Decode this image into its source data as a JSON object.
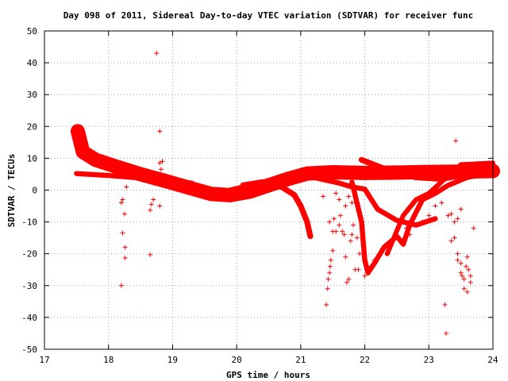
{
  "chart_data": {
    "type": "scatter",
    "title": "Day 098 of 2011, Sidereal Day-to-day VTEC variation (SDTVAR) for receiver func",
    "xlabel": "GPS time / hours",
    "ylabel": "SDTVAR / TECUs",
    "xlim": [
      17,
      24
    ],
    "ylim": [
      -50,
      50
    ],
    "x_ticks": [
      17,
      18,
      19,
      20,
      21,
      22,
      23,
      24
    ],
    "y_ticks": [
      -50,
      -40,
      -30,
      -20,
      -10,
      0,
      10,
      20,
      30,
      40,
      50
    ],
    "grid": true,
    "marker": "+",
    "point_color": "#ff0000",
    "band_color": "#ff0000",
    "bands": [
      {
        "points": [
          [
            17.5,
            5.2
          ],
          [
            18.0,
            4.6
          ],
          [
            18.5,
            3.8
          ],
          [
            19.0,
            2.8
          ],
          [
            19.3,
            2.2
          ]
        ],
        "width": 1.6
      },
      {
        "points": [
          [
            17.52,
            18.5
          ],
          [
            17.6,
            12.0
          ],
          [
            17.8,
            9.5
          ],
          [
            18.1,
            7.5
          ],
          [
            18.5,
            5.0
          ],
          [
            18.9,
            2.8
          ],
          [
            19.3,
            0.5
          ],
          [
            19.6,
            -1.2
          ],
          [
            19.9,
            -1.6
          ],
          [
            20.2,
            -0.5
          ],
          [
            20.5,
            1.5
          ],
          [
            20.8,
            3.5
          ],
          [
            21.1,
            5.2
          ],
          [
            21.5,
            5.6
          ],
          [
            22.0,
            5.4
          ],
          [
            22.5,
            5.5
          ],
          [
            23.0,
            5.7
          ],
          [
            23.5,
            5.8
          ],
          [
            24.0,
            6.0
          ]
        ],
        "width": 4.5
      },
      {
        "points": [
          [
            20.1,
            1.5
          ],
          [
            20.4,
            2.5
          ],
          [
            20.7,
            1.0
          ],
          [
            20.9,
            -1.5
          ],
          [
            21.0,
            -5.0
          ],
          [
            21.1,
            -10.0
          ],
          [
            21.15,
            -14.5
          ]
        ],
        "width": 1.8
      },
      {
        "points": [
          [
            19.8,
            -0.5
          ],
          [
            20.5,
            3.0
          ],
          [
            21.2,
            4.0
          ],
          [
            21.6,
            2.2
          ],
          [
            21.8,
            1.0
          ],
          [
            22.0,
            0.3
          ],
          [
            22.2,
            -6.0
          ],
          [
            22.5,
            -9.5
          ],
          [
            22.8,
            -11.0
          ],
          [
            23.1,
            -9.0
          ]
        ],
        "width": 1.6
      },
      {
        "points": [
          [
            21.8,
            2.5
          ],
          [
            21.95,
            -10.0
          ],
          [
            22.0,
            -22.0
          ],
          [
            22.05,
            -26.0
          ],
          [
            22.15,
            -23.0
          ],
          [
            22.3,
            -18.0
          ],
          [
            22.5,
            -14.5
          ],
          [
            22.6,
            -17.0
          ],
          [
            22.7,
            -11.0
          ],
          [
            22.9,
            -3.0
          ],
          [
            23.1,
            -1.0
          ],
          [
            23.3,
            1.5
          ],
          [
            23.6,
            4.0
          ],
          [
            24.0,
            5.5
          ]
        ],
        "width": 1.6
      },
      {
        "points": [
          [
            21.95,
            9.5
          ],
          [
            22.4,
            6.0
          ],
          [
            22.8,
            4.0
          ],
          [
            23.2,
            3.5
          ],
          [
            23.6,
            5.0
          ],
          [
            24.0,
            7.0
          ]
        ],
        "width": 1.8
      },
      {
        "points": [
          [
            22.35,
            -20.0
          ],
          [
            22.6,
            -8.0
          ],
          [
            22.8,
            -3.0
          ],
          [
            23.0,
            -1.0
          ],
          [
            23.5,
            8.0
          ],
          [
            24.0,
            8.5
          ]
        ],
        "width": 1.5
      }
    ],
    "scatter_points": [
      [
        18.2,
        -30
      ],
      [
        18.22,
        -13.5
      ],
      [
        18.2,
        -4
      ],
      [
        18.25,
        -7.5
      ],
      [
        18.26,
        -18
      ],
      [
        18.26,
        -21.3
      ],
      [
        18.22,
        -3
      ],
      [
        18.28,
        1
      ],
      [
        18.65,
        -20.3
      ],
      [
        18.65,
        -6.3
      ],
      [
        18.67,
        -4.5
      ],
      [
        18.7,
        -3
      ],
      [
        18.75,
        43
      ],
      [
        18.8,
        18.5
      ],
      [
        18.8,
        8.5
      ],
      [
        18.82,
        6.5
      ],
      [
        18.8,
        -5
      ],
      [
        18.84,
        9
      ],
      [
        21.35,
        -2
      ],
      [
        21.4,
        -36
      ],
      [
        21.42,
        -31
      ],
      [
        21.43,
        -28
      ],
      [
        21.45,
        -26
      ],
      [
        21.46,
        -24
      ],
      [
        21.47,
        -22
      ],
      [
        21.5,
        -19
      ],
      [
        21.45,
        -10
      ],
      [
        21.5,
        -13
      ],
      [
        21.52,
        -9
      ],
      [
        21.55,
        -13
      ],
      [
        21.6,
        -11
      ],
      [
        21.62,
        -8
      ],
      [
        21.65,
        -13
      ],
      [
        21.68,
        -14
      ],
      [
        21.55,
        -1
      ],
      [
        21.6,
        -3
      ],
      [
        21.7,
        -5
      ],
      [
        21.7,
        -21
      ],
      [
        21.72,
        -29
      ],
      [
        21.75,
        -28
      ],
      [
        21.78,
        -16
      ],
      [
        21.8,
        -14
      ],
      [
        21.82,
        -11
      ],
      [
        21.75,
        -2
      ],
      [
        21.8,
        -4
      ],
      [
        21.85,
        1
      ],
      [
        21.88,
        -15
      ],
      [
        21.9,
        -25
      ],
      [
        21.85,
        -25
      ],
      [
        21.92,
        -20
      ],
      [
        22.0,
        -27
      ],
      [
        22.05,
        -26
      ],
      [
        22.1,
        -24
      ],
      [
        22.15,
        -22
      ],
      [
        23.25,
        -36
      ],
      [
        23.27,
        -45
      ],
      [
        23.3,
        -8
      ],
      [
        23.35,
        -16
      ],
      [
        23.4,
        -15
      ],
      [
        23.42,
        15.5
      ],
      [
        23.45,
        -20
      ],
      [
        23.45,
        -22
      ],
      [
        23.5,
        -23
      ],
      [
        23.5,
        -26
      ],
      [
        23.52,
        -27
      ],
      [
        23.55,
        -28
      ],
      [
        23.55,
        -31
      ],
      [
        23.58,
        -24
      ],
      [
        23.6,
        -32
      ],
      [
        23.6,
        -21
      ],
      [
        23.62,
        -25
      ],
      [
        23.65,
        -27
      ],
      [
        23.65,
        -29
      ],
      [
        23.7,
        -12
      ],
      [
        23.4,
        -10
      ],
      [
        23.45,
        -9
      ],
      [
        23.5,
        -6
      ],
      [
        23.35,
        -7.5
      ],
      [
        22.9,
        -10
      ],
      [
        22.7,
        -14
      ],
      [
        22.65,
        -12
      ],
      [
        23.0,
        -8
      ],
      [
        23.1,
        -5
      ],
      [
        23.2,
        -4
      ]
    ]
  }
}
